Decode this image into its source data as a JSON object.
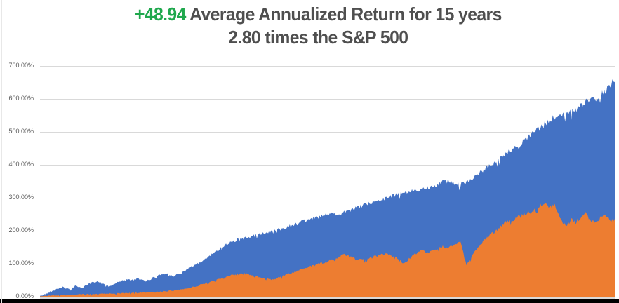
{
  "title": {
    "highlight": "+48.94",
    "line1_rest": " Average Annualized Return for 15 years",
    "line2": "2.80 times the S&P 500",
    "highlight_color": "#1FA84D",
    "text_color": "#4f4f4f"
  },
  "chart_data": {
    "type": "area",
    "title": "+48.94 Average Annualized Return for 15 years 2.80 times the S&P 500",
    "xlabel": "",
    "ylabel": "",
    "x_span": "15 years",
    "ylim": [
      0,
      700
    ],
    "grid": true,
    "legend": "none",
    "background": "#ffffff",
    "gridline_color": "#d9d9d9",
    "axis_strip_color": "#d9d9d9",
    "bottom_bar_color": "#000000",
    "tick_label_color": "#595959",
    "y_ticks": [
      {
        "value": 700,
        "label": "700.00%"
      },
      {
        "value": 600,
        "label": "600.00%"
      },
      {
        "value": 500,
        "label": "500.00%"
      },
      {
        "value": 400,
        "label": "400.00%"
      },
      {
        "value": 300,
        "label": "300.00%"
      },
      {
        "value": 200,
        "label": "200.00%"
      },
      {
        "value": 100,
        "label": "100.00%"
      },
      {
        "value": 0,
        "label": "0.00%"
      }
    ],
    "series": [
      {
        "name": "strategy-cumulative-return-blue",
        "color": "#4472C4",
        "unit": "percent",
        "points": [
          [
            0.0,
            2
          ],
          [
            0.012,
            10
          ],
          [
            0.025,
            22
          ],
          [
            0.04,
            30
          ],
          [
            0.051,
            21
          ],
          [
            0.062,
            33
          ],
          [
            0.074,
            27
          ],
          [
            0.086,
            40
          ],
          [
            0.1,
            47
          ],
          [
            0.111,
            37
          ],
          [
            0.123,
            33
          ],
          [
            0.135,
            44
          ],
          [
            0.148,
            53
          ],
          [
            0.16,
            50
          ],
          [
            0.172,
            54
          ],
          [
            0.184,
            46
          ],
          [
            0.196,
            57
          ],
          [
            0.208,
            67
          ],
          [
            0.221,
            70
          ],
          [
            0.233,
            63
          ],
          [
            0.245,
            72
          ],
          [
            0.257,
            85
          ],
          [
            0.27,
            96
          ],
          [
            0.282,
            108
          ],
          [
            0.297,
            126
          ],
          [
            0.316,
            150
          ],
          [
            0.333,
            168
          ],
          [
            0.361,
            180
          ],
          [
            0.39,
            193
          ],
          [
            0.419,
            206
          ],
          [
            0.45,
            224
          ],
          [
            0.48,
            242
          ],
          [
            0.51,
            251
          ],
          [
            0.541,
            263
          ],
          [
            0.571,
            282
          ],
          [
            0.601,
            300
          ],
          [
            0.631,
            314
          ],
          [
            0.661,
            327
          ],
          [
            0.675,
            331
          ],
          [
            0.696,
            346
          ],
          [
            0.712,
            353
          ],
          [
            0.73,
            338
          ],
          [
            0.749,
            358
          ],
          [
            0.766,
            379
          ],
          [
            0.785,
            401
          ],
          [
            0.801,
            421
          ],
          [
            0.821,
            446
          ],
          [
            0.841,
            471
          ],
          [
            0.858,
            498
          ],
          [
            0.876,
            521
          ],
          [
            0.895,
            545
          ],
          [
            0.911,
            552
          ],
          [
            0.931,
            567
          ],
          [
            0.951,
            591
          ],
          [
            0.968,
            605
          ],
          [
            0.981,
            620
          ],
          [
            0.991,
            641
          ],
          [
            1.0,
            658
          ]
        ]
      },
      {
        "name": "sp500-cumulative-return-orange",
        "color": "#ED7D31",
        "unit": "percent",
        "points": [
          [
            0.0,
            1
          ],
          [
            0.02,
            4
          ],
          [
            0.05,
            6
          ],
          [
            0.08,
            7
          ],
          [
            0.11,
            9
          ],
          [
            0.14,
            10
          ],
          [
            0.17,
            12
          ],
          [
            0.2,
            14
          ],
          [
            0.22,
            17
          ],
          [
            0.24,
            21
          ],
          [
            0.257,
            26
          ],
          [
            0.271,
            32
          ],
          [
            0.286,
            40
          ],
          [
            0.3,
            48
          ],
          [
            0.316,
            56
          ],
          [
            0.333,
            66
          ],
          [
            0.355,
            70
          ],
          [
            0.375,
            62
          ],
          [
            0.395,
            55
          ],
          [
            0.407,
            52
          ],
          [
            0.421,
            62
          ],
          [
            0.441,
            75
          ],
          [
            0.456,
            85
          ],
          [
            0.471,
            92
          ],
          [
            0.48,
            96
          ],
          [
            0.5,
            108
          ],
          [
            0.521,
            120
          ],
          [
            0.529,
            131
          ],
          [
            0.541,
            118
          ],
          [
            0.561,
            112
          ],
          [
            0.581,
            121
          ],
          [
            0.601,
            130
          ],
          [
            0.621,
            118
          ],
          [
            0.633,
            101
          ],
          [
            0.646,
            122
          ],
          [
            0.661,
            138
          ],
          [
            0.675,
            134
          ],
          [
            0.696,
            152
          ],
          [
            0.712,
            149
          ],
          [
            0.73,
            168
          ],
          [
            0.741,
            96
          ],
          [
            0.753,
            131
          ],
          [
            0.766,
            160
          ],
          [
            0.785,
            191
          ],
          [
            0.801,
            215
          ],
          [
            0.813,
            228
          ],
          [
            0.826,
            238
          ],
          [
            0.841,
            250
          ],
          [
            0.858,
            263
          ],
          [
            0.869,
            278
          ],
          [
            0.877,
            290
          ],
          [
            0.886,
            272
          ],
          [
            0.895,
            276
          ],
          [
            0.904,
            240
          ],
          [
            0.913,
            214
          ],
          [
            0.923,
            233
          ],
          [
            0.931,
            226
          ],
          [
            0.941,
            246
          ],
          [
            0.951,
            252
          ],
          [
            0.959,
            228
          ],
          [
            0.968,
            226
          ],
          [
            0.976,
            245
          ],
          [
            0.984,
            250
          ],
          [
            0.992,
            232
          ],
          [
            1.0,
            237
          ]
        ]
      }
    ]
  }
}
